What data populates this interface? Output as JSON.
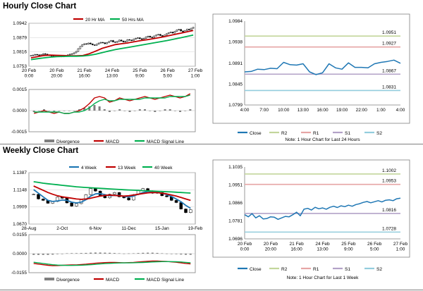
{
  "sections": {
    "hourly_title": "Hourly Close Chart",
    "weekly_title": "Weekly Close Chart"
  },
  "colors": {
    "close": "#1f77b4",
    "ma_red": "#c00000",
    "ma_green": "#00b050",
    "r2": "#c3d69b",
    "r1": "#e6a5a5",
    "s1": "#b3a2c7",
    "s2": "#93cddd",
    "macd_red": "#c00000",
    "macd_green": "#00b050",
    "divergence": "#7f7f7f"
  },
  "chart_data": [
    {
      "id": "hourly_price",
      "type": "candlestick",
      "legend": [
        "20 Hr MA",
        "50 Hrs MA"
      ],
      "yticks": [
        "1.0942",
        "1.0879",
        "1.0816",
        "1.0753"
      ],
      "ylim": [
        1.0753,
        1.0942
      ],
      "xticks": [
        "20 Feb\n0:00",
        "20 Feb\n20:00",
        "21 Feb\n16:00",
        "24 Feb\n13:00",
        "25 Feb\n9:00",
        "26 Feb\n5:00",
        "27 Feb\n1:00"
      ],
      "close": [
        1.08,
        1.0802,
        1.0805,
        1.0803,
        1.0801,
        1.0804,
        1.0808,
        1.0806,
        1.0803,
        1.08,
        1.0798,
        1.0796,
        1.0798,
        1.08,
        1.0797,
        1.0795,
        1.0797,
        1.08,
        1.0803,
        1.0806,
        1.0808,
        1.0812,
        1.0818,
        1.083,
        1.084,
        1.0848,
        1.0852,
        1.085,
        1.0855,
        1.0851,
        1.0847,
        1.0845,
        1.085,
        1.0855,
        1.0858,
        1.0856,
        1.0852,
        1.0857,
        1.0862,
        1.0866,
        1.086,
        1.0858,
        1.0862,
        1.0868,
        1.0864,
        1.086,
        1.0863,
        1.087,
        1.0868,
        1.0866,
        1.0872,
        1.0876,
        1.0878,
        1.0874,
        1.0871,
        1.0876,
        1.0882,
        1.0885,
        1.0881,
        1.0879,
        1.0886,
        1.089,
        1.0893,
        1.0888,
        1.0884,
        1.089,
        1.0896,
        1.09,
        1.0903,
        1.0899,
        1.0906,
        1.0912,
        1.0915,
        1.0908,
        1.0904,
        1.091,
        1.0916,
        1.0913,
        1.092,
        1.0924
      ],
      "ma20": [
        1.079,
        1.0795,
        1.08,
        1.0802,
        1.0801,
        1.08,
        1.0799,
        1.0799,
        1.08,
        1.0808,
        1.082,
        1.0832,
        1.084,
        1.0848,
        1.0852,
        1.0856,
        1.0861,
        1.0866,
        1.087,
        1.0875,
        1.088,
        1.0886,
        1.0892,
        1.0898,
        1.0904,
        1.091
      ],
      "ma50": [
        1.0782,
        1.0786,
        1.079,
        1.0793,
        1.0795,
        1.0796,
        1.0797,
        1.0797,
        1.0798,
        1.0801,
        1.0806,
        1.0813,
        1.082,
        1.0826,
        1.0831,
        1.0836,
        1.0841,
        1.0846,
        1.0851,
        1.0856,
        1.0861,
        1.0866,
        1.0872,
        1.0878,
        1.0884,
        1.089
      ]
    },
    {
      "id": "hourly_macd",
      "type": "line",
      "legend": [
        "Divergence",
        "MACD",
        "MACD Signal Line"
      ],
      "yticks": [
        "0.0015",
        "0.0000",
        "-0.0015"
      ],
      "ylim": [
        -0.0015,
        0.0015
      ],
      "macd": [
        -0.0002,
        -0.0001,
        0.0,
        -0.0001,
        -0.0002,
        -0.0001,
        -0.0002,
        -0.0002,
        -0.0001,
        0.0,
        0.0002,
        0.0005,
        0.0009,
        0.001,
        0.0009,
        0.0006,
        0.0007,
        0.0009,
        0.0008,
        0.0007,
        0.0008,
        0.0009,
        0.001,
        0.0009,
        0.0008,
        0.0009,
        0.001,
        0.0011,
        0.001,
        0.0009,
        0.001,
        0.0012
      ],
      "signal": [
        -0.0001,
        -0.0001,
        -0.0001,
        -0.0001,
        -0.0001,
        -0.0001,
        -0.0002,
        -0.0002,
        -0.0001,
        -0.0001,
        0.0,
        0.0002,
        0.0005,
        0.0007,
        0.0008,
        0.0007,
        0.0007,
        0.0008,
        0.0008,
        0.0008,
        0.0008,
        0.0008,
        0.0009,
        0.0009,
        0.0009,
        0.0009,
        0.0009,
        0.001,
        0.001,
        0.001,
        0.001,
        0.0011
      ],
      "divergence": [
        -0.0001,
        0.0,
        0.0001,
        0.0,
        -0.0001,
        0.0,
        0.0,
        0.0,
        0.0,
        0.0001,
        0.0002,
        0.0003,
        0.0004,
        0.0003,
        0.0001,
        -0.0001,
        0.0,
        0.0001,
        0.0,
        -0.0001,
        0.0,
        0.0001,
        0.0001,
        0.0,
        -0.0001,
        0.0,
        0.0001,
        0.0001,
        0.0,
        -0.0001,
        0.0,
        0.0001
      ]
    },
    {
      "id": "hourly_pivot",
      "type": "line",
      "series": [
        {
          "name": "Close",
          "values": [
            1.0872,
            1.0873,
            1.0878,
            1.0877,
            1.088,
            1.0879,
            1.0893,
            1.0888,
            1.0887,
            1.089,
            1.0872,
            1.0866,
            1.087,
            1.089,
            1.0881,
            1.0878,
            1.0892,
            1.0882,
            1.0882,
            1.0881,
            1.089,
            1.0893,
            1.0895,
            1.0898,
            1.0891
          ]
        },
        {
          "name": "R2",
          "level": 1.0951
        },
        {
          "name": "R1",
          "level": 1.0927
        },
        {
          "name": "S1",
          "level": 1.0867
        },
        {
          "name": "S2",
          "level": 1.0831
        }
      ],
      "yticks": [
        "1.0984",
        "1.0938",
        "1.0891",
        "1.0845",
        "1.0799"
      ],
      "ylim": [
        1.0799,
        1.0984
      ],
      "xticks": [
        "4:00",
        "7:00",
        "10:00",
        "13:00",
        "16:00",
        "19:00",
        "22:00",
        "1:00",
        "4:00"
      ],
      "level_labels": [
        "1.0951",
        "1.0927",
        "1.0867",
        "1.0831"
      ],
      "note": "Note: 1 Hour Chart for Last 24 Hours"
    },
    {
      "id": "weekly_price",
      "type": "candlestick",
      "legend": [
        "4 Week",
        "13 Week",
        "40 Week"
      ],
      "yticks": [
        "1.1387",
        "1.1148",
        "1.0909",
        "1.0670"
      ],
      "ylim": [
        1.067,
        1.1387
      ],
      "xticks": [
        "28-Aug",
        "2-Oct",
        "6-Nov",
        "11-Dec",
        "15-Jan",
        "19-Feb"
      ],
      "close": [
        1.1085,
        1.102,
        1.1,
        1.096,
        1.0985,
        1.1045,
        1.103,
        1.0965,
        1.092,
        1.0955,
        1.101,
        1.108,
        1.1165,
        1.113,
        1.1065,
        1.1035,
        1.1085,
        1.111,
        1.105,
        1.1035,
        1.1005,
        1.108,
        1.114,
        1.1165,
        1.113,
        1.11,
        1.111,
        1.1065,
        1.105,
        1.1,
        1.097,
        1.088,
        1.083,
        1.087
      ],
      "ma4": [
        1.115,
        1.11,
        1.105,
        1.1,
        1.0985,
        1.0992,
        1.1005,
        1.1,
        1.0975,
        1.0965,
        1.0975,
        1.101,
        1.106,
        1.109,
        1.1095,
        1.108,
        1.1065,
        1.107,
        1.107,
        1.1055,
        1.105,
        1.106,
        1.1085,
        1.111,
        1.1125,
        1.1125,
        1.1115,
        1.11,
        1.108,
        1.1055,
        1.102,
        1.098,
        1.093,
        1.089
      ],
      "ma13": [
        1.12,
        1.117,
        1.114,
        1.111,
        1.1085,
        1.1065,
        1.105,
        1.104,
        1.103,
        1.102,
        1.1015,
        1.102,
        1.103,
        1.1045,
        1.106,
        1.107,
        1.1075,
        1.107,
        1.1065,
        1.106,
        1.1065,
        1.1075,
        1.1085,
        1.1095,
        1.1105,
        1.111,
        1.1108,
        1.11,
        1.109,
        1.1075,
        1.106,
        1.104,
        1.102,
        1.1
      ],
      "ma40": [
        1.126,
        1.125,
        1.124,
        1.1232,
        1.1225,
        1.1218,
        1.121,
        1.1203,
        1.1196,
        1.119,
        1.1185,
        1.118,
        1.1176,
        1.1172,
        1.1168,
        1.1164,
        1.116,
        1.1156,
        1.1152,
        1.1148,
        1.1145,
        1.1142,
        1.1139,
        1.1136,
        1.1133,
        1.113,
        1.1127,
        1.1124,
        1.1121,
        1.1118,
        1.1114,
        1.111,
        1.1106,
        1.1102
      ]
    },
    {
      "id": "weekly_macd",
      "type": "line",
      "legend": [
        "Divergence",
        "MACD",
        "MACD Signal Line"
      ],
      "yticks": [
        "0.0155",
        "0.0000",
        "-0.0155"
      ],
      "ylim": [
        -0.0155,
        0.0155
      ],
      "macd": [
        -0.008,
        -0.0085,
        -0.009,
        -0.0095,
        -0.0098,
        -0.0097,
        -0.0095,
        -0.0093,
        -0.0092,
        -0.0091,
        -0.0089,
        -0.0086,
        -0.0082,
        -0.0078,
        -0.0075,
        -0.0073,
        -0.0072,
        -0.0072,
        -0.0073,
        -0.0074,
        -0.0073,
        -0.0071,
        -0.0068,
        -0.0065,
        -0.0062,
        -0.006,
        -0.006,
        -0.0062,
        -0.0064,
        -0.0067,
        -0.007,
        -0.0075,
        -0.008,
        -0.0083
      ],
      "signal": [
        -0.007,
        -0.0075,
        -0.008,
        -0.0085,
        -0.009,
        -0.0093,
        -0.0095,
        -0.0096,
        -0.0096,
        -0.0095,
        -0.0094,
        -0.0092,
        -0.009,
        -0.0087,
        -0.0084,
        -0.0081,
        -0.0079,
        -0.0077,
        -0.0076,
        -0.0075,
        -0.0075,
        -0.0074,
        -0.0073,
        -0.0072,
        -0.007,
        -0.0068,
        -0.0066,
        -0.0065,
        -0.0065,
        -0.0065,
        -0.0066,
        -0.0068,
        -0.0071,
        -0.0074
      ],
      "divergence": [
        -0.001,
        -0.001,
        -0.001,
        -0.001,
        -0.0008,
        -0.0004,
        0.0,
        0.0003,
        0.0004,
        0.0004,
        0.0005,
        0.0006,
        0.0008,
        0.0009,
        0.0009,
        0.0008,
        0.0007,
        0.0005,
        0.0003,
        0.0001,
        0.0002,
        0.0003,
        0.0005,
        0.0007,
        0.0008,
        0.0008,
        0.0006,
        0.0003,
        0.0001,
        -0.0002,
        -0.0004,
        -0.0007,
        -0.0009,
        -0.0009
      ]
    },
    {
      "id": "weekly_pivot",
      "type": "line",
      "series": [
        {
          "name": "Close",
          "values": [
            1.081,
            1.08,
            1.0815,
            1.0795,
            1.0805,
            1.079,
            1.0792,
            1.08,
            1.0798,
            1.0788,
            1.0795,
            1.0802,
            1.08,
            1.081,
            1.0822,
            1.0805,
            1.0836,
            1.084,
            1.0832,
            1.0845,
            1.0838,
            1.0842,
            1.0836,
            1.0845,
            1.085,
            1.0844,
            1.0852,
            1.0848,
            1.0855,
            1.085,
            1.0858,
            1.0862,
            1.0868,
            1.0872,
            1.0866,
            1.0871,
            1.0876,
            1.087,
            1.0878,
            1.088,
            1.0876,
            1.0885,
            1.0888
          ]
        },
        {
          "name": "R2",
          "level": 1.1002
        },
        {
          "name": "R1",
          "level": 1.0953
        },
        {
          "name": "S1",
          "level": 1.0816
        },
        {
          "name": "S2",
          "level": 1.0728
        }
      ],
      "yticks": [
        "1.1035",
        "1.0951",
        "1.0866",
        "1.0781",
        "1.0696"
      ],
      "ylim": [
        1.0696,
        1.1035
      ],
      "xticks": [
        "20 Feb\n0:00",
        "20 Feb\n20:00",
        "21 Feb\n16:00",
        "24 Feb\n13:00",
        "25 Feb\n9:00",
        "26 Feb\n5:00",
        "27 Feb\n1:00"
      ],
      "level_labels": [
        "1.1002",
        "1.0953",
        "1.0816",
        "1.0728"
      ],
      "note": "Note: 1 Hour Chart for Last 1 Week"
    }
  ]
}
